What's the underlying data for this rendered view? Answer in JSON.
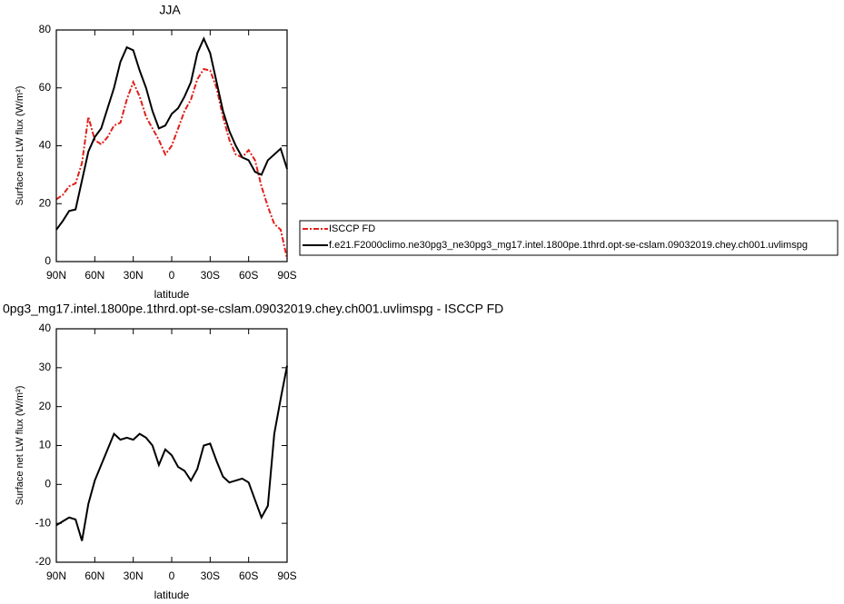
{
  "chart_data": [
    {
      "type": "line",
      "title": "JJA",
      "xlabel": "latitude",
      "ylabel": "Surface net LW flux (W/m²)",
      "x": [
        90,
        85,
        80,
        75,
        70,
        65,
        60,
        55,
        50,
        45,
        40,
        35,
        30,
        25,
        20,
        15,
        10,
        5,
        0,
        -5,
        -10,
        -15,
        -20,
        -25,
        -30,
        -35,
        -40,
        -45,
        -50,
        -55,
        -60,
        -65,
        -70,
        -75,
        -80,
        -85,
        -90
      ],
      "xlim": [
        90,
        -90
      ],
      "xticks": [
        {
          "value": 90,
          "label": "90N"
        },
        {
          "value": 60,
          "label": "60N"
        },
        {
          "value": 30,
          "label": "30N"
        },
        0,
        {
          "value": -30,
          "label": "30S"
        },
        {
          "value": -60,
          "label": "60S"
        },
        {
          "value": -90,
          "label": "90S"
        }
      ],
      "ylim": [
        0,
        80
      ],
      "yticks": [
        0,
        20,
        40,
        60,
        80
      ],
      "legend": "right",
      "series": [
        {
          "name": "ISCCP FD",
          "color": "#e0201b",
          "dash": "dashed",
          "values": [
            21.5,
            23,
            26,
            27,
            34,
            50,
            42,
            40.5,
            43,
            47,
            48,
            56,
            62,
            57,
            50,
            46,
            42,
            37,
            40,
            46,
            52,
            56,
            63,
            66.5,
            66,
            60,
            50,
            42,
            37,
            36,
            38.5,
            35,
            26,
            19,
            13,
            11,
            1
          ]
        },
        {
          "name": "f.e21.F2000climo.ne30pg3_ne30pg3_mg17.intel.1800pe.1thrd.opt-se-cslam.09032019.chey.ch001.uvlimspg",
          "color": "#000000",
          "dash": "solid",
          "values": [
            11,
            14,
            17.5,
            18,
            28,
            38,
            43,
            46,
            53,
            60,
            69,
            74,
            73,
            66,
            60,
            52,
            46,
            47,
            51,
            53,
            57,
            62,
            72,
            77,
            72,
            62,
            52,
            45,
            40,
            36,
            35,
            31,
            30,
            35,
            37,
            39,
            32
          ]
        }
      ]
    },
    {
      "type": "line",
      "title": "0pg3_mg17.intel.1800pe.1thrd.opt-se-cslam.09032019.chey.ch001.uvlimspg - ISCCP FD",
      "xlabel": "latitude",
      "ylabel": "Surface net LW flux (W/m²)",
      "x": [
        90,
        85,
        80,
        75,
        70,
        65,
        60,
        55,
        50,
        45,
        40,
        35,
        30,
        25,
        20,
        15,
        10,
        5,
        0,
        -5,
        -10,
        -15,
        -20,
        -25,
        -30,
        -35,
        -40,
        -45,
        -50,
        -55,
        -60,
        -65,
        -70,
        -75,
        -80,
        -85,
        -90
      ],
      "xlim": [
        90,
        -90
      ],
      "xticks": [
        {
          "value": 90,
          "label": "90N"
        },
        {
          "value": 60,
          "label": "60N"
        },
        {
          "value": 30,
          "label": "30N"
        },
        0,
        {
          "value": -30,
          "label": "30S"
        },
        {
          "value": -60,
          "label": "60S"
        },
        {
          "value": -90,
          "label": "90S"
        }
      ],
      "ylim": [
        -20,
        40
      ],
      "yticks": [
        -20,
        -10,
        0,
        10,
        20,
        30,
        40
      ],
      "series": [
        {
          "color": "#000000",
          "dash": "solid",
          "values": [
            -10.5,
            -9.5,
            -8.5,
            -9,
            -14.5,
            -5,
            1,
            5,
            9,
            13,
            11.5,
            12,
            11.5,
            13,
            12,
            10,
            5,
            9,
            7.5,
            4.5,
            3.5,
            1,
            4,
            10,
            10.5,
            6,
            2,
            0.5,
            1,
            1.5,
            0.5,
            -4,
            -8.5,
            -5.5,
            13,
            22,
            30.5
          ]
        }
      ]
    }
  ]
}
